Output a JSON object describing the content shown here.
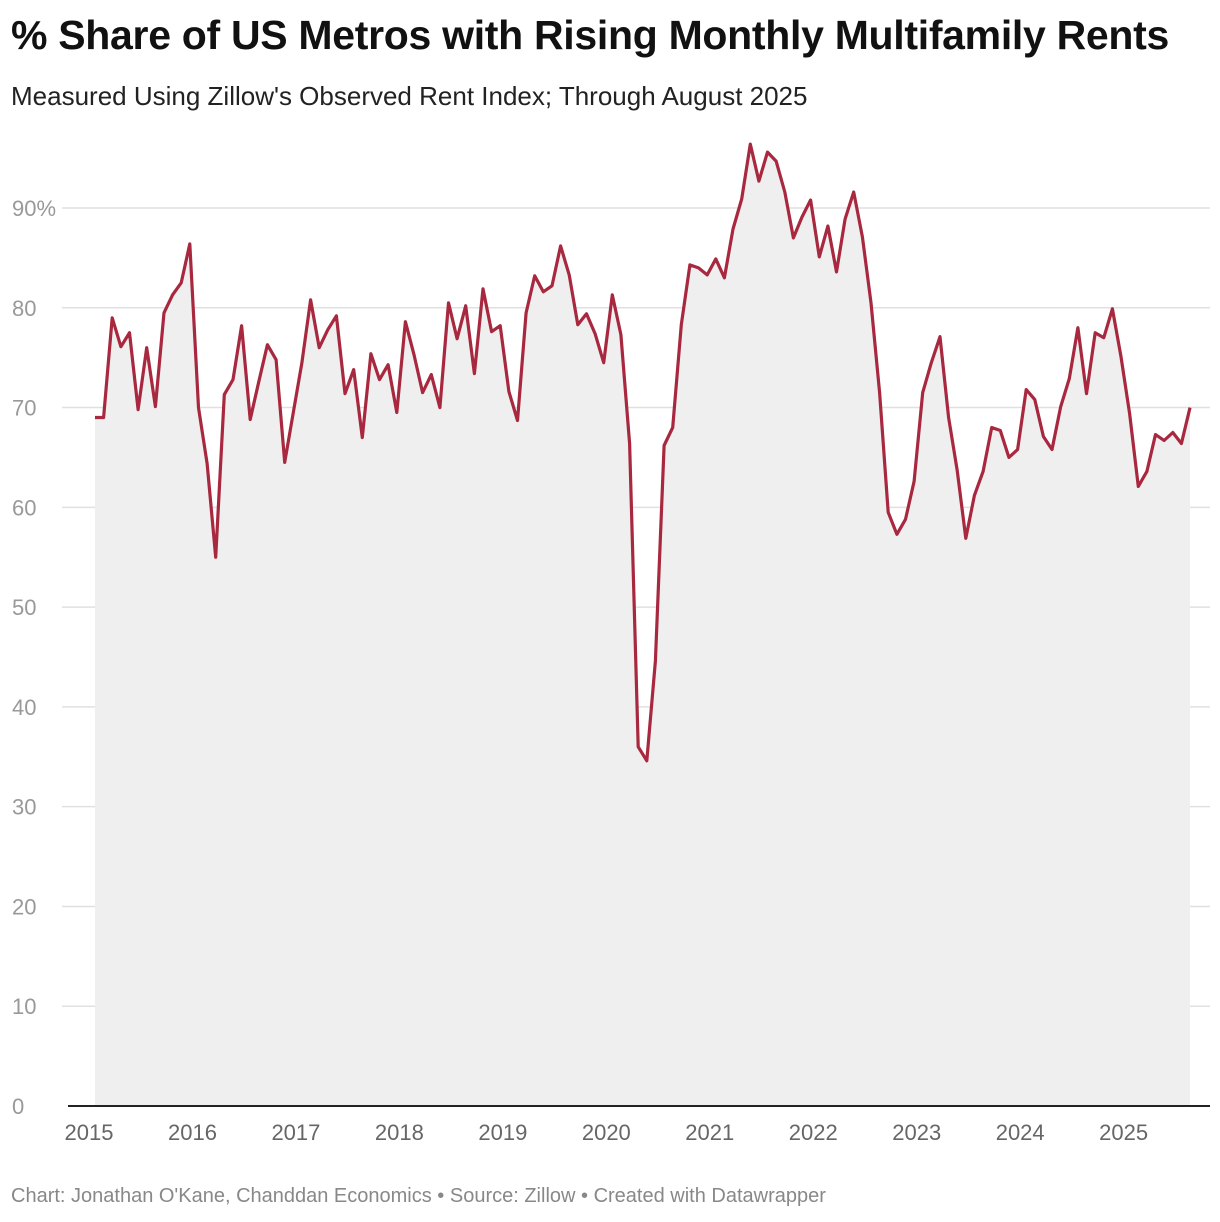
{
  "title": "% Share of US Metros with Rising Monthly Multifamily Rents",
  "subtitle": "Measured Using Zillow's Observed Rent Index; Through August 2025",
  "footer": "Chart: Jonathan O'Kane, Chanddan Economics • Source: Zillow • Created with Datawrapper",
  "chart_data": {
    "type": "area",
    "title": "% Share of US Metros with Rising Monthly Multifamily Rents",
    "subtitle": "Measured Using Zillow's Observed Rent Index; Through August 2025",
    "xlabel": "",
    "ylabel": "",
    "ylim": [
      0,
      90
    ],
    "yticks": [
      0,
      10,
      20,
      30,
      40,
      50,
      60,
      70,
      80,
      90
    ],
    "ytick_labels": [
      "0",
      "10",
      "20",
      "30",
      "40",
      "50",
      "60",
      "70",
      "80",
      "90%"
    ],
    "xticks": [
      "2015",
      "2016",
      "2017",
      "2018",
      "2019",
      "2020",
      "2021",
      "2022",
      "2023",
      "2024",
      "2025"
    ],
    "grid": true,
    "line_color": "#a8283f",
    "fill_color": "#efefef",
    "x": [
      "2015-01",
      "2015-02",
      "2015-03",
      "2015-04",
      "2015-05",
      "2015-06",
      "2015-07",
      "2015-08",
      "2015-09",
      "2015-10",
      "2015-11",
      "2015-12",
      "2016-01",
      "2016-02",
      "2016-03",
      "2016-04",
      "2016-05",
      "2016-06",
      "2016-07",
      "2016-08",
      "2016-09",
      "2016-10",
      "2016-11",
      "2016-12",
      "2017-01",
      "2017-02",
      "2017-03",
      "2017-04",
      "2017-05",
      "2017-06",
      "2017-07",
      "2017-08",
      "2017-09",
      "2017-10",
      "2017-11",
      "2017-12",
      "2018-01",
      "2018-02",
      "2018-03",
      "2018-04",
      "2018-05",
      "2018-06",
      "2018-07",
      "2018-08",
      "2018-09",
      "2018-10",
      "2018-11",
      "2018-12",
      "2019-01",
      "2019-02",
      "2019-03",
      "2019-04",
      "2019-05",
      "2019-06",
      "2019-07",
      "2019-08",
      "2019-09",
      "2019-10",
      "2019-11",
      "2019-12",
      "2020-01",
      "2020-02",
      "2020-03",
      "2020-04",
      "2020-05",
      "2020-06",
      "2020-07",
      "2020-08",
      "2020-09",
      "2020-10",
      "2020-11",
      "2020-12",
      "2021-01",
      "2021-02",
      "2021-03",
      "2021-04",
      "2021-05",
      "2021-06",
      "2021-07",
      "2021-08",
      "2021-09",
      "2021-10",
      "2021-11",
      "2021-12",
      "2022-01",
      "2022-02",
      "2022-03",
      "2022-04",
      "2022-05",
      "2022-06",
      "2022-07",
      "2022-08",
      "2022-09",
      "2022-10",
      "2022-11",
      "2022-12",
      "2023-01",
      "2023-02",
      "2023-03",
      "2023-04",
      "2023-05",
      "2023-06",
      "2023-07",
      "2023-08",
      "2023-09",
      "2023-10",
      "2023-11",
      "2023-12",
      "2024-01",
      "2024-02",
      "2024-03",
      "2024-04",
      "2024-05",
      "2024-06",
      "2024-07",
      "2024-08",
      "2024-09",
      "2024-10",
      "2024-11",
      "2024-12",
      "2025-01",
      "2025-02",
      "2025-03",
      "2025-04",
      "2025-05",
      "2025-06",
      "2025-07",
      "2025-08"
    ],
    "values": [
      69,
      69,
      79,
      76.1,
      77.5,
      69.8,
      76,
      70.1,
      79.5,
      81.3,
      82.5,
      86.4,
      70,
      64.4,
      55,
      71.3,
      72.8,
      78.2,
      68.8,
      72.6,
      76.3,
      74.8,
      64.5,
      69.5,
      74.5,
      80.8,
      76,
      77.8,
      79.2,
      71.4,
      73.8,
      67,
      75.4,
      72.8,
      74.3,
      69.5,
      78.6,
      75.3,
      71.5,
      73.3,
      70,
      80.5,
      76.9,
      80.2,
      73.4,
      81.9,
      77.6,
      78.2,
      71.6,
      68.7,
      79.5,
      83.2,
      81.6,
      82.2,
      86.2,
      83.3,
      78.3,
      79.4,
      77.4,
      74.5,
      81.3,
      77.3,
      66.4,
      36,
      34.6,
      44.6,
      66.2,
      68,
      78.3,
      84.3,
      84,
      83.3,
      84.9,
      83,
      87.9,
      90.9,
      96.4,
      92.7,
      95.6,
      94.7,
      91.6,
      87,
      89.1,
      90.8,
      85.1,
      88.2,
      83.6,
      88.9,
      91.6,
      87.1,
      80.5,
      71.5,
      59.5,
      57.3,
      58.8,
      62.6,
      71.5,
      74.5,
      77.1,
      69,
      63.7,
      56.9,
      61.2,
      63.6,
      68,
      67.7,
      65,
      65.8,
      71.8,
      70.8,
      67.1,
      65.8,
      70.1,
      72.9,
      78,
      71.4,
      77.5,
      77,
      79.9,
      75.1,
      69.4,
      62.1,
      63.6,
      67.3,
      66.7,
      67.5,
      66.4,
      70
    ]
  }
}
